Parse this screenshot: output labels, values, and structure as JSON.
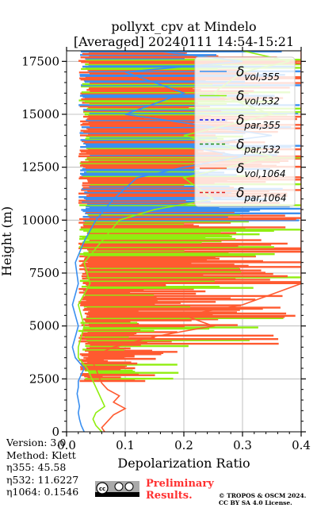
{
  "chart_data": {
    "type": "line",
    "title_line1": "pollyxt_cpv at Mindelo",
    "title_line2": "[Averaged] 20240111 14:54-15:21",
    "xlabel": "Depolarization Ratio",
    "ylabel": "Height (m)",
    "xlim": [
      0.0,
      0.4
    ],
    "ylim": [
      0,
      18000
    ],
    "x_ticks": [
      {
        "value": 0.0,
        "label": "0.0"
      },
      {
        "value": 0.1,
        "label": "0.1"
      },
      {
        "value": 0.2,
        "label": "0.2"
      },
      {
        "value": 0.3,
        "label": "0.3"
      },
      {
        "value": 0.4,
        "label": "0.4"
      }
    ],
    "y_ticks": [
      {
        "value": 0,
        "label": "0"
      },
      {
        "value": 2500,
        "label": "2500"
      },
      {
        "value": 5000,
        "label": "5000"
      },
      {
        "value": 7500,
        "label": "7500"
      },
      {
        "value": 10000,
        "label": "10000"
      },
      {
        "value": 12500,
        "label": "12500"
      },
      {
        "value": 15000,
        "label": "15000"
      },
      {
        "value": 17500,
        "label": "17500"
      }
    ],
    "grid": true,
    "legend_position": "top-right",
    "series": [
      {
        "name": "δvol,355",
        "main": "δ",
        "sub": "vol,355",
        "color": "#3a8ff0",
        "dash": "solid",
        "points": [
          [
            0.03,
            0
          ],
          [
            0.025,
            300
          ],
          [
            0.022,
            600
          ],
          [
            0.02,
            900
          ],
          [
            0.022,
            1200
          ],
          [
            0.02,
            1500
          ],
          [
            0.018,
            1800
          ],
          [
            0.02,
            2100
          ],
          [
            0.02,
            2400
          ],
          [
            0.025,
            2700
          ],
          [
            0.03,
            3000
          ],
          [
            0.015,
            3500
          ],
          [
            0.01,
            4000
          ],
          [
            0.02,
            5000
          ],
          [
            0.01,
            6000
          ],
          [
            0.02,
            7000
          ],
          [
            0.015,
            8000
          ],
          [
            0.03,
            9000
          ],
          [
            0.05,
            10000
          ],
          [
            0.08,
            11000
          ],
          [
            0.12,
            12000
          ],
          [
            0.2,
            12500
          ],
          [
            0.3,
            13000
          ],
          [
            0.2,
            13500
          ],
          [
            0.35,
            14000
          ],
          [
            0.1,
            15000
          ],
          [
            0.2,
            16000
          ],
          [
            0.1,
            17000
          ],
          [
            0.3,
            17500
          ],
          [
            0.15,
            18000
          ]
        ]
      },
      {
        "name": "δvol,532",
        "main": "δ",
        "sub": "vol,532",
        "color": "#90ee10",
        "dash": "solid",
        "points": [
          [
            0.06,
            0
          ],
          [
            0.05,
            300
          ],
          [
            0.045,
            600
          ],
          [
            0.05,
            900
          ],
          [
            0.065,
            1200
          ],
          [
            0.06,
            1500
          ],
          [
            0.055,
            1800
          ],
          [
            0.05,
            2100
          ],
          [
            0.045,
            2400
          ],
          [
            0.04,
            2700
          ],
          [
            0.035,
            3000
          ],
          [
            0.02,
            3500
          ],
          [
            0.02,
            4000
          ],
          [
            0.03,
            5000
          ],
          [
            0.02,
            6000
          ],
          [
            0.04,
            7000
          ],
          [
            0.03,
            8000
          ],
          [
            0.06,
            9000
          ],
          [
            0.09,
            10000
          ],
          [
            0.15,
            10500
          ],
          [
            0.25,
            11000
          ],
          [
            0.2,
            12000
          ],
          [
            0.35,
            13000
          ],
          [
            0.2,
            14000
          ],
          [
            0.35,
            15000
          ],
          [
            0.25,
            16000
          ],
          [
            0.3,
            17000
          ],
          [
            0.38,
            17500
          ],
          [
            0.3,
            18000
          ]
        ]
      },
      {
        "name": "δpar,355",
        "main": "δ",
        "sub": "par,355",
        "color": "#1a10e8",
        "dash": "dashed",
        "points": []
      },
      {
        "name": "δpar,532",
        "main": "δ",
        "sub": "par,532",
        "color": "#1f8a1f",
        "dash": "dashed",
        "points": []
      },
      {
        "name": "δvol,1064",
        "main": "δ",
        "sub": "vol,1064",
        "color": "#ff5a30",
        "dash": "solid",
        "points": [
          [
            0.065,
            0
          ],
          [
            0.06,
            200
          ],
          [
            0.07,
            500
          ],
          [
            0.08,
            800
          ],
          [
            0.1,
            1100
          ],
          [
            0.08,
            1400
          ],
          [
            0.09,
            1700
          ],
          [
            0.07,
            2000
          ],
          [
            0.06,
            2300
          ],
          [
            0.055,
            2600
          ],
          [
            0.05,
            3000
          ],
          [
            0.04,
            3500
          ],
          [
            0.08,
            4000
          ],
          [
            0.15,
            4500
          ],
          [
            0.25,
            5000
          ],
          [
            0.2,
            5500
          ],
          [
            0.3,
            6000
          ],
          [
            0.35,
            6500
          ],
          [
            0.4,
            7000
          ],
          [
            0.4,
            8000
          ],
          [
            0.4,
            9000
          ],
          [
            0.4,
            10000
          ],
          [
            0.4,
            11000
          ],
          [
            0.4,
            12000
          ],
          [
            0.4,
            13000
          ],
          [
            0.4,
            14000
          ],
          [
            0.4,
            15000
          ],
          [
            0.4,
            16000
          ],
          [
            0.4,
            17000
          ],
          [
            0.4,
            18000
          ]
        ]
      },
      {
        "name": "δpar,1064",
        "main": "δ",
        "sub": "par,1064",
        "color": "#e02020",
        "dash": "dashed",
        "points": []
      }
    ]
  },
  "info": {
    "version": "Version: 3.0",
    "method": "Method: Klett",
    "eta355": "η355:  45.58",
    "eta532": "η532: 11.6227",
    "eta1064": "η1064: 0.1546"
  },
  "preliminary": {
    "line1": "Preliminary",
    "line2": "Results."
  },
  "copyright": {
    "line1": "© TROPOS & OSCM 2024.",
    "line2": "CC BY SA 4.0 License."
  }
}
